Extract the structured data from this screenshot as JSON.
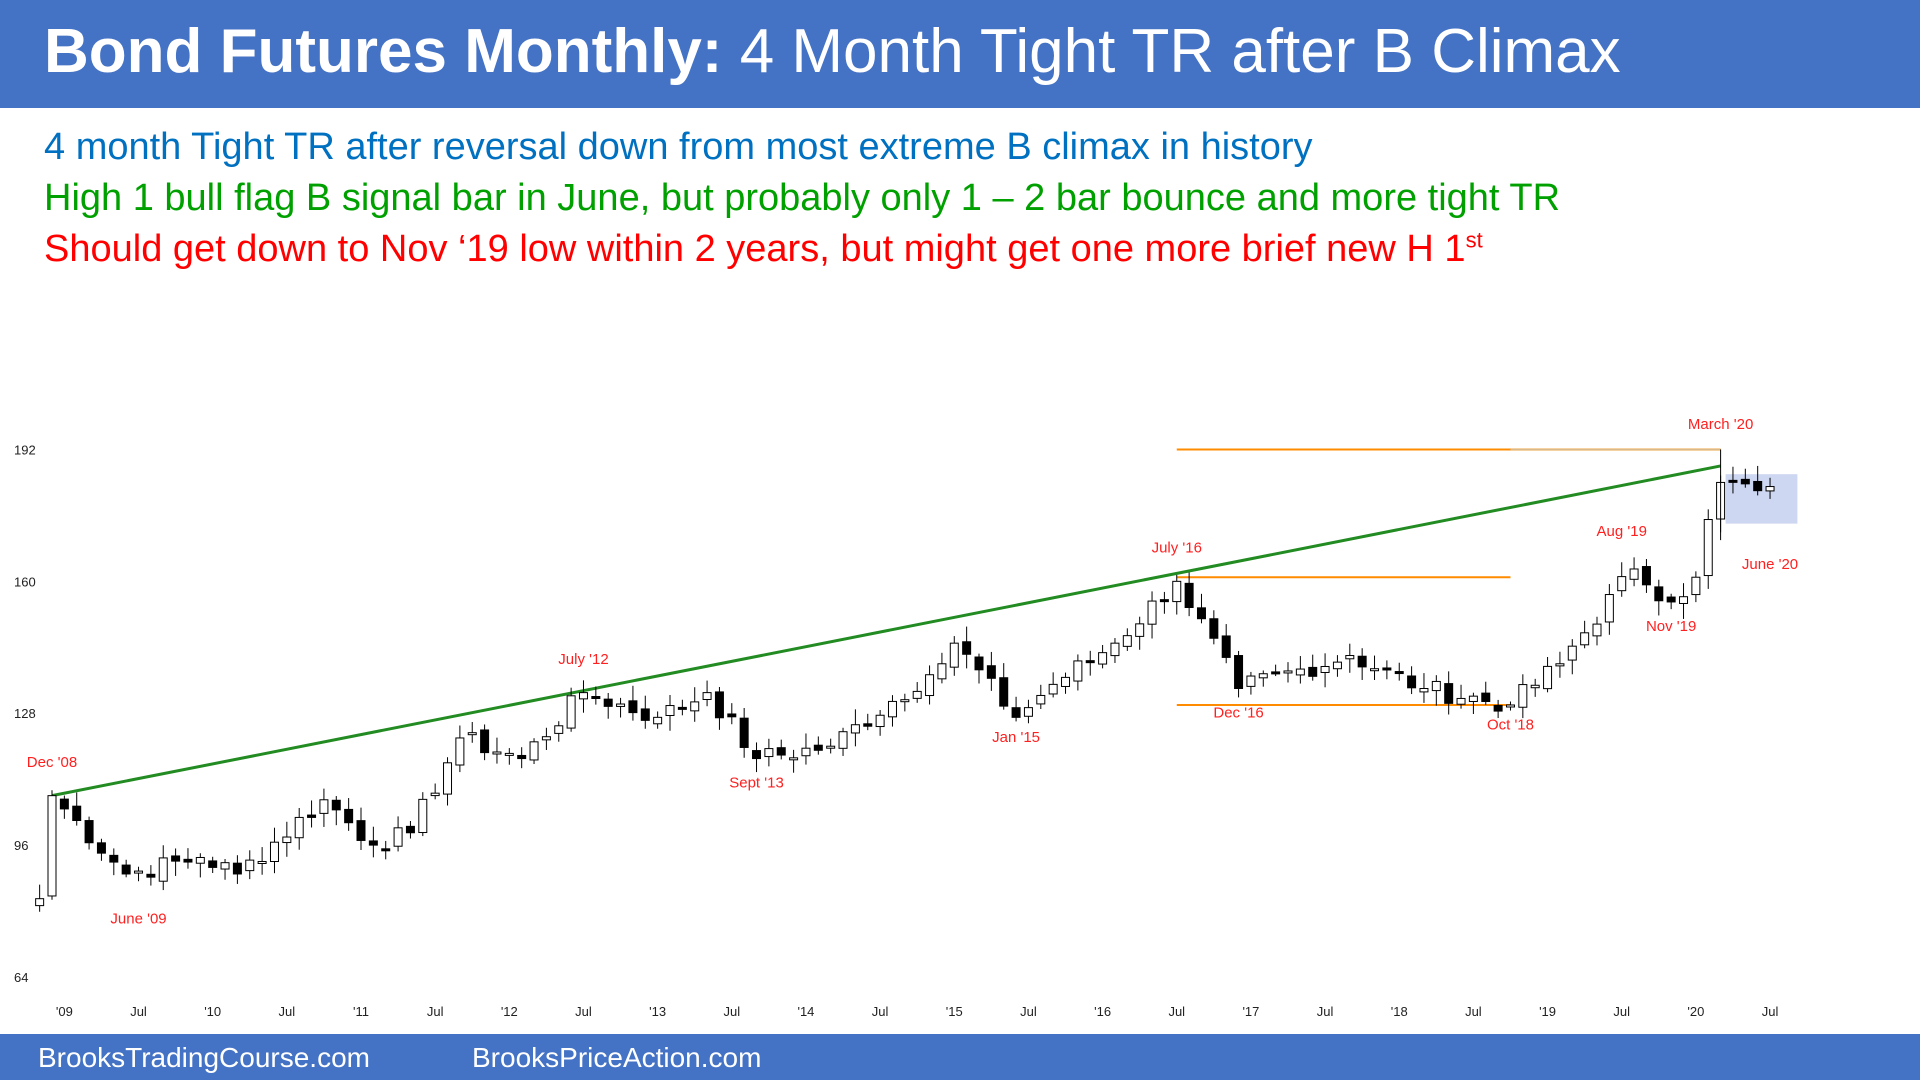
{
  "header": {
    "title_bold": "Bond Futures Monthly:",
    "title_rest": " 4 Month Tight TR after B Climax"
  },
  "notes": {
    "line1": "4 month Tight TR after reversal down from most extreme B climax in history",
    "line2": "High 1 bull flag B signal bar in June, but probably only 1 – 2 bar bounce and more tight TR",
    "line3": "Should get down to Nov ‘19 low within 2 years, but might get one more brief new H 1",
    "line3_sup": "st"
  },
  "footer": {
    "left": "BrooksTradingCourse.com",
    "right": "BrooksPriceAction.com"
  },
  "colors": {
    "header_bg": "#4472c4",
    "line1": "#0070c0",
    "line2": "#00a000",
    "line3": "#ff0000",
    "trendline": "#228b22",
    "level_lines": "#ff8c00",
    "annotation": "#ff2020",
    "range_box": "#c5d0f0"
  },
  "chart_data": {
    "type": "candlestick",
    "period": "monthly",
    "ylim": [
      64,
      204
    ],
    "yticks": [
      64,
      96,
      128,
      160,
      192
    ],
    "xtick_labels": [
      {
        "label": "'09",
        "month": "2009-01"
      },
      {
        "label": "Jul",
        "month": "2009-07"
      },
      {
        "label": "'10",
        "month": "2010-01"
      },
      {
        "label": "Jul",
        "month": "2010-07"
      },
      {
        "label": "'11",
        "month": "2011-01"
      },
      {
        "label": "Jul",
        "month": "2011-07"
      },
      {
        "label": "'12",
        "month": "2012-01"
      },
      {
        "label": "Jul",
        "month": "2012-07"
      },
      {
        "label": "'13",
        "month": "2013-01"
      },
      {
        "label": "Jul",
        "month": "2013-07"
      },
      {
        "label": "'14",
        "month": "2014-01"
      },
      {
        "label": "Jul",
        "month": "2014-07"
      },
      {
        "label": "'15",
        "month": "2015-01"
      },
      {
        "label": "Jul",
        "month": "2015-07"
      },
      {
        "label": "'16",
        "month": "2016-01"
      },
      {
        "label": "Jul",
        "month": "2016-07"
      },
      {
        "label": "'17",
        "month": "2017-01"
      },
      {
        "label": "Jul",
        "month": "2017-07"
      },
      {
        "label": "'18",
        "month": "2018-01"
      },
      {
        "label": "Jul",
        "month": "2018-07"
      },
      {
        "label": "'19",
        "month": "2019-01"
      },
      {
        "label": "Jul",
        "month": "2019-07"
      },
      {
        "label": "'20",
        "month": "2020-01"
      },
      {
        "label": "Jul",
        "month": "2020-07"
      }
    ],
    "anchors": [
      {
        "month": "2008-11",
        "price": 83
      },
      {
        "month": "2008-12",
        "price": 108
      },
      {
        "month": "2009-06",
        "price": 89
      },
      {
        "month": "2009-12",
        "price": 93
      },
      {
        "month": "2010-03",
        "price": 89
      },
      {
        "month": "2010-10",
        "price": 107
      },
      {
        "month": "2011-02",
        "price": 96
      },
      {
        "month": "2011-05",
        "price": 99
      },
      {
        "month": "2011-09",
        "price": 122
      },
      {
        "month": "2012-02",
        "price": 117
      },
      {
        "month": "2012-07",
        "price": 133
      },
      {
        "month": "2013-01",
        "price": 127
      },
      {
        "month": "2013-05",
        "price": 133
      },
      {
        "month": "2013-09",
        "price": 117
      },
      {
        "month": "2014-03",
        "price": 120
      },
      {
        "month": "2014-12",
        "price": 140
      },
      {
        "month": "2015-01",
        "price": 145
      },
      {
        "month": "2015-06",
        "price": 127
      },
      {
        "month": "2015-09",
        "price": 135
      },
      {
        "month": "2016-02",
        "price": 145
      },
      {
        "month": "2016-07",
        "price": 160
      },
      {
        "month": "2016-12",
        "price": 134
      },
      {
        "month": "2017-09",
        "price": 142
      },
      {
        "month": "2018-03",
        "price": 134
      },
      {
        "month": "2018-10",
        "price": 130
      },
      {
        "month": "2019-02",
        "price": 140
      },
      {
        "month": "2019-08",
        "price": 163
      },
      {
        "month": "2019-11",
        "price": 155
      },
      {
        "month": "2020-01",
        "price": 161
      },
      {
        "month": "2020-02",
        "price": 175
      },
      {
        "month": "2020-03",
        "price": 184
      },
      {
        "month": "2020-06",
        "price": 182
      },
      {
        "month": "2020-07",
        "price": 183
      }
    ],
    "trendline": {
      "from": {
        "month": "2008-12",
        "price": 108
      },
      "to": {
        "month": "2020-03",
        "price": 188
      }
    },
    "horizontal_levels": [
      {
        "price": 192,
        "from": "2016-07",
        "to": "2020-03"
      },
      {
        "price": 161,
        "from": "2016-07",
        "to": "2018-10"
      },
      {
        "price": 130,
        "from": "2016-07",
        "to": "2018-10"
      }
    ],
    "range_box": {
      "from": "2020-03",
      "to": "2020-08",
      "price_low": 174,
      "price_high": 186
    },
    "annotations": [
      {
        "text": "Dec '08",
        "month": "2008-12",
        "price": 115
      },
      {
        "text": "June '09",
        "month": "2009-07",
        "price": 77
      },
      {
        "text": "July '12",
        "month": "2012-07",
        "price": 140
      },
      {
        "text": "Sept '13",
        "month": "2013-09",
        "price": 110
      },
      {
        "text": "Jan '15",
        "month": "2015-06",
        "price": 121
      },
      {
        "text": "July '16",
        "month": "2016-07",
        "price": 167
      },
      {
        "text": "Dec '16",
        "month": "2016-12",
        "price": 127
      },
      {
        "text": "Oct '18",
        "month": "2018-10",
        "price": 124
      },
      {
        "text": "Aug '19",
        "month": "2019-07",
        "price": 171
      },
      {
        "text": "Nov '19",
        "month": "2019-11",
        "price": 148
      },
      {
        "text": "March '20",
        "month": "2020-03",
        "price": 197
      },
      {
        "text": "June '20",
        "month": "2020-07",
        "price": 163
      }
    ]
  }
}
